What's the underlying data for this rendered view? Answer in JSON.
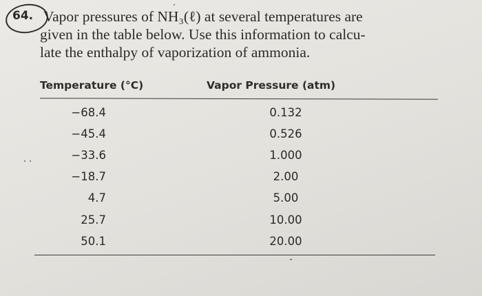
{
  "problem": {
    "number": "64.",
    "lines": [
      "Vapor pressures of NH₃(ℓ) at several temperatures are",
      "given in the table below. Use this information to calcu-",
      "late the enthalpy of vaporization of ammonia."
    ]
  },
  "table": {
    "headers": [
      "Temperature (°C)",
      "Vapor Pressure (atm)"
    ],
    "rows": [
      {
        "temperature": "−68.4",
        "pressure": "0.132"
      },
      {
        "temperature": "−45.4",
        "pressure": "0.526"
      },
      {
        "temperature": "−33.6",
        "pressure": "1.000"
      },
      {
        "temperature": "−18.7",
        "pressure": "2.00"
      },
      {
        "temperature": "4.7",
        "pressure": "5.00"
      },
      {
        "temperature": "25.7",
        "pressure": "10.00"
      },
      {
        "temperature": "50.1",
        "pressure": "20.00"
      }
    ]
  }
}
